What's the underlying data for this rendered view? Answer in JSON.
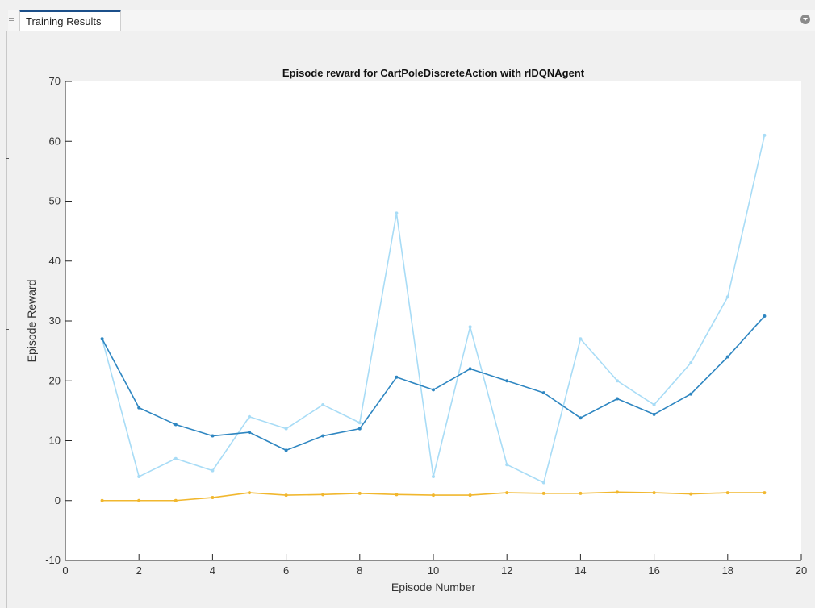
{
  "window": {
    "tab_label": "Training Results"
  },
  "chart_data": {
    "type": "line",
    "title": "Episode reward for CartPoleDiscreteAction with rlDQNAgent",
    "xlabel": "Episode Number",
    "ylabel": "Episode Reward",
    "xlim": [
      0,
      20
    ],
    "ylim": [
      -10,
      70
    ],
    "xticks": [
      0,
      2,
      4,
      6,
      8,
      10,
      12,
      14,
      16,
      18,
      20
    ],
    "yticks": [
      -10,
      0,
      10,
      20,
      30,
      40,
      50,
      60,
      70
    ],
    "grid": false,
    "x": [
      1,
      2,
      3,
      4,
      5,
      6,
      7,
      8,
      9,
      10,
      11,
      12,
      13,
      14,
      15,
      16,
      17,
      18,
      19
    ],
    "series": [
      {
        "color": "#a8dcf6",
        "values": [
          27,
          4,
          7,
          5,
          14,
          12,
          16,
          13,
          48,
          4,
          29,
          6,
          3,
          27,
          20,
          16,
          23,
          34,
          61
        ]
      },
      {
        "color": "#2e86c1",
        "values": [
          27,
          15.5,
          12.7,
          10.8,
          11.4,
          8.4,
          10.8,
          12.0,
          20.6,
          18.5,
          22.0,
          20.0,
          18.0,
          13.8,
          17.0,
          14.4,
          17.8,
          24.0,
          30.8
        ]
      },
      {
        "color": "#f1b72e",
        "values": [
          0.0,
          0.0,
          0.0,
          0.5,
          1.3,
          0.9,
          1.0,
          1.2,
          1.0,
          0.9,
          0.9,
          1.3,
          1.2,
          1.2,
          1.4,
          1.3,
          1.1,
          1.3,
          1.3
        ]
      }
    ]
  }
}
